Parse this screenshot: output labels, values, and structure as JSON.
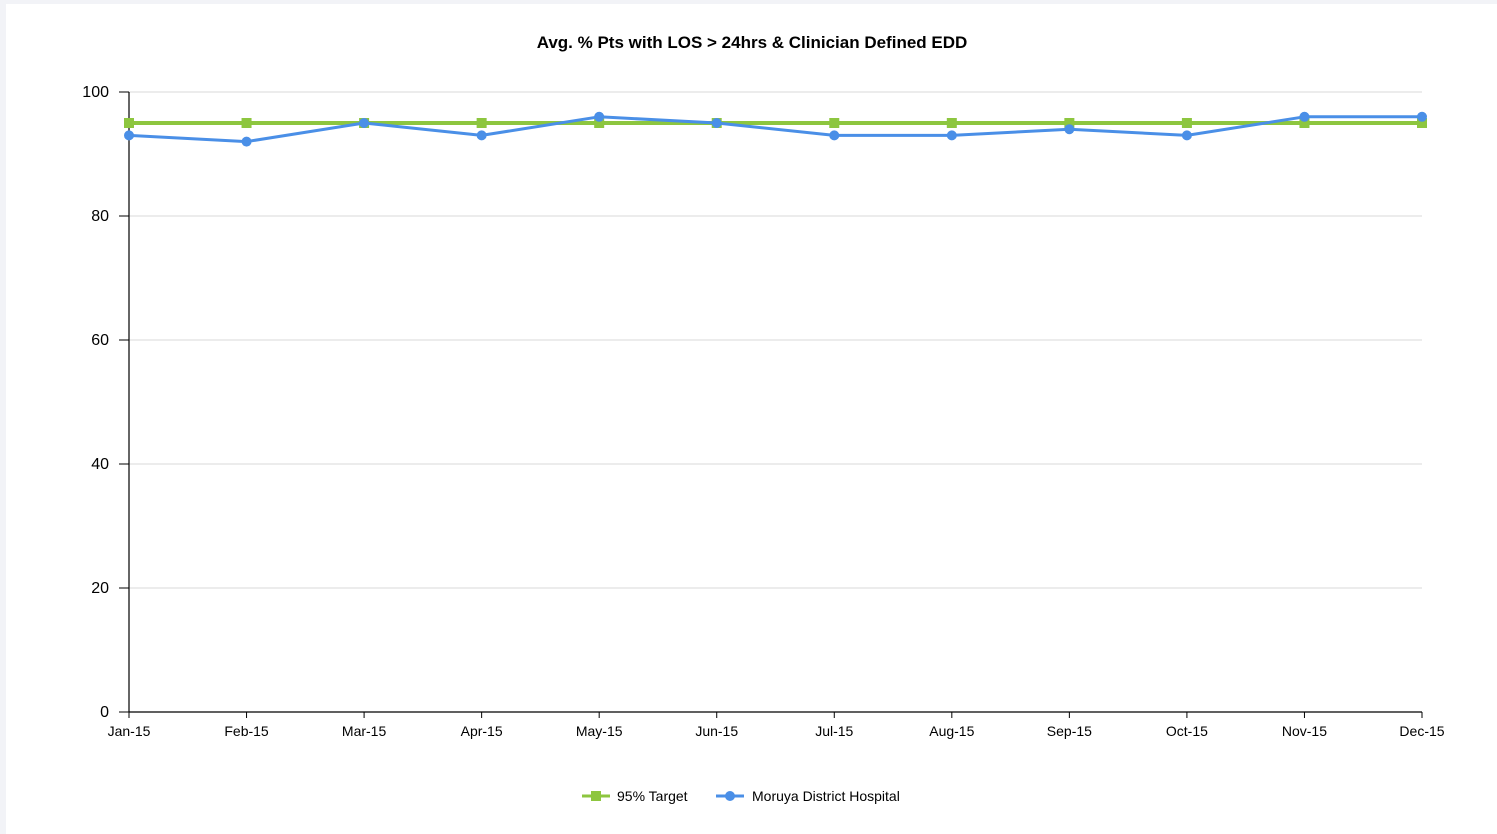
{
  "chart_data": {
    "type": "line",
    "title": "Avg. % Pts with LOS > 24hrs & Clinician Defined EDD",
    "xlabel": "",
    "ylabel": "",
    "ylim": [
      0,
      100
    ],
    "yticks": [
      0,
      20,
      40,
      60,
      80,
      100
    ],
    "categories": [
      "Jan-15",
      "Feb-15",
      "Mar-15",
      "Apr-15",
      "May-15",
      "Jun-15",
      "Jul-15",
      "Aug-15",
      "Sep-15",
      "Oct-15",
      "Nov-15",
      "Dec-15"
    ],
    "grid": true,
    "legend_position": "bottom-center",
    "series": [
      {
        "name": "95% Target",
        "color": "#8dc63f",
        "marker": "square",
        "values": [
          95,
          95,
          95,
          95,
          95,
          95,
          95,
          95,
          95,
          95,
          95,
          95
        ]
      },
      {
        "name": "Moruya District Hospital",
        "color": "#4a8fe7",
        "marker": "circle",
        "values": [
          93,
          92,
          95,
          93,
          96,
          95,
          93,
          93,
          94,
          93,
          96,
          96
        ]
      }
    ]
  }
}
